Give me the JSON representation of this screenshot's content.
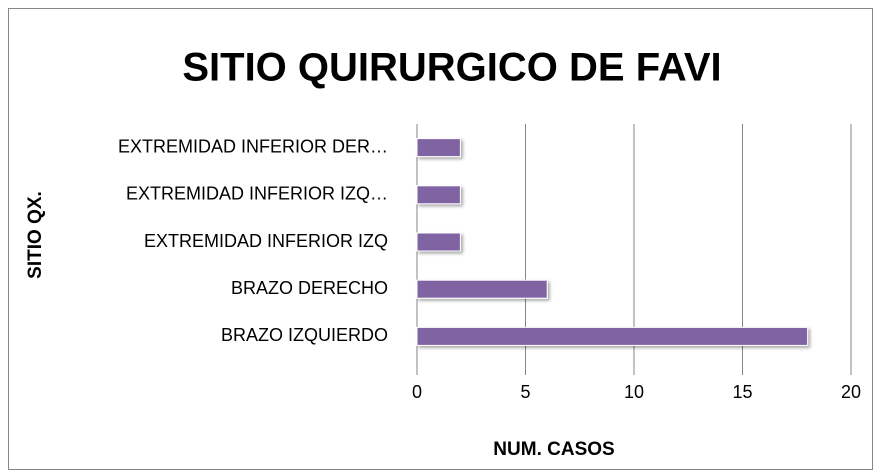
{
  "chart_data": {
    "type": "barh",
    "title": "SITIO QUIRURGICO DE FAVI",
    "x_label": "NUM. CASOS",
    "y_label": "SITIO QX.",
    "categories": [
      "BRAZO IZQUIERDO",
      "BRAZO DERECHO",
      "EXTREMIDAD INFERIOR IZQ",
      "EXTREMIDAD INFERIOR IZQ…",
      "EXTREMIDAD INFERIOR DER…"
    ],
    "values": [
      18,
      6,
      2,
      2,
      2
    ],
    "color": "#8064a2",
    "xlim": [
      0,
      20
    ],
    "xticks": [
      0,
      5,
      10,
      15,
      20
    ],
    "grid": true
  }
}
